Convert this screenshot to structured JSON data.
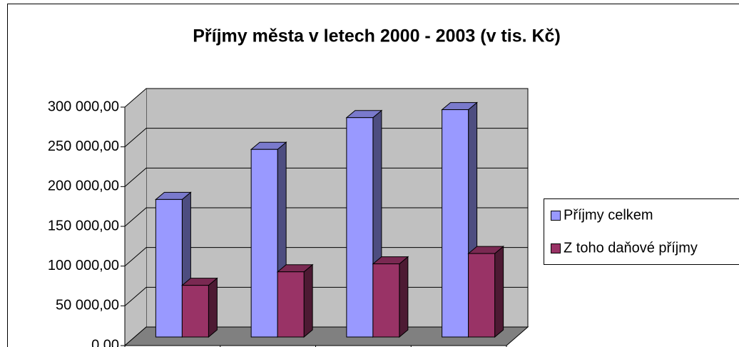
{
  "chart_data": {
    "type": "bar3d",
    "title": "Příjmy města v letech 2000 - 2003 (v tis. Kč)",
    "categories": [
      null,
      null,
      null,
      null
    ],
    "series": [
      {
        "name": "Příjmy celkem",
        "color": "#9999ff",
        "values": [
          173000,
          236000,
          276000,
          286000
        ]
      },
      {
        "name": "Z toho daňové příjmy",
        "color": "#993366",
        "values": [
          65000,
          82000,
          92000,
          105000
        ]
      }
    ],
    "ylim": [
      0,
      300000
    ],
    "yticks": [
      {
        "value": 0,
        "label": "0,00"
      },
      {
        "value": 50000,
        "label": "50 000,00"
      },
      {
        "value": 100000,
        "label": "100 000,00"
      },
      {
        "value": 150000,
        "label": "150 000,00"
      },
      {
        "value": 200000,
        "label": "200 000,00"
      },
      {
        "value": 250000,
        "label": "250 000,00"
      },
      {
        "value": 300000,
        "label": "300 000,00"
      }
    ],
    "grid": true,
    "legend": "right"
  }
}
